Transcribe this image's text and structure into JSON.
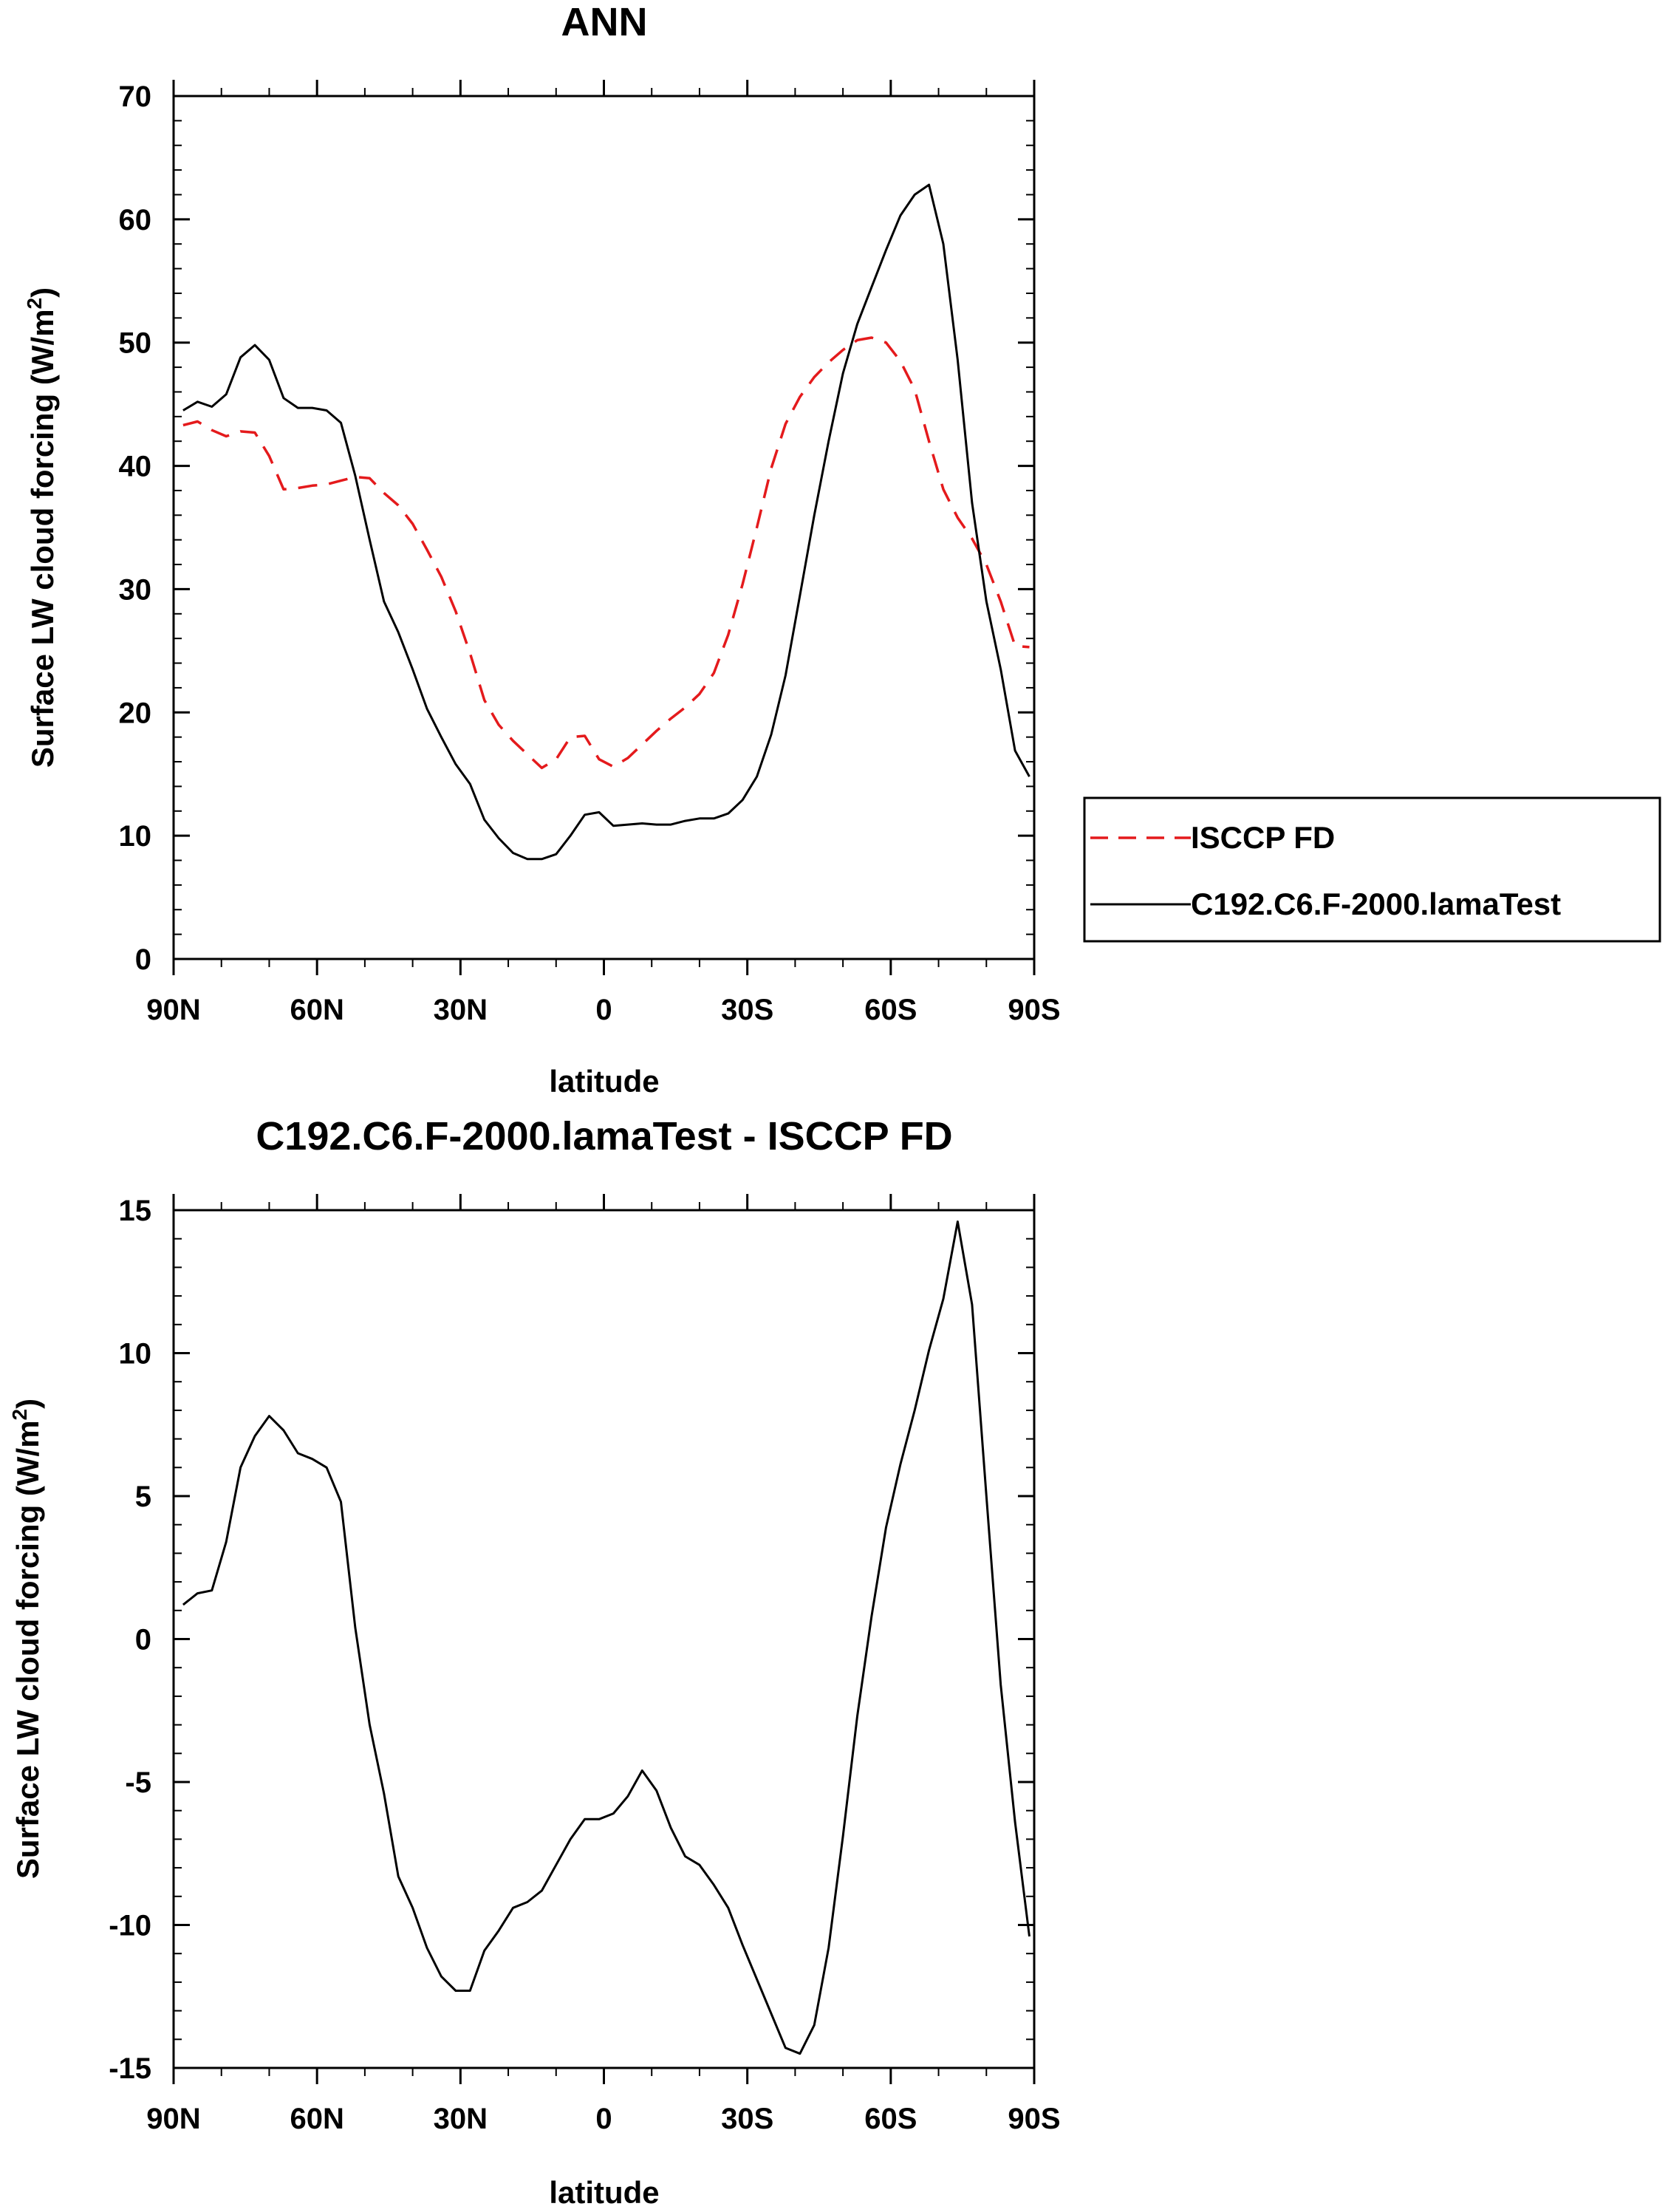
{
  "chart_data": [
    {
      "type": "line",
      "title": "ANN",
      "xlabel": "latitude",
      "ylabel": "Surface LW cloud forcing (W/m",
      "ylabel_sup": "2",
      "ylabel_close": ")",
      "xlim": [
        90,
        -90
      ],
      "ylim": [
        0,
        70
      ],
      "yticks": [
        0,
        10,
        20,
        30,
        40,
        50,
        60,
        70
      ],
      "xticks": [
        {
          "value": 90,
          "label": "90N"
        },
        {
          "value": 60,
          "label": "60N"
        },
        {
          "value": 30,
          "label": "30N"
        },
        {
          "value": 0,
          "label": "0"
        },
        {
          "value": -30,
          "label": "30S"
        },
        {
          "value": -60,
          "label": "60S"
        },
        {
          "value": -90,
          "label": "90S"
        }
      ],
      "legend_position": "right",
      "series": [
        {
          "name": "ISCCP FD",
          "color": "#e41a1c",
          "dash": "dashed",
          "x": [
            88,
            85,
            82,
            79,
            76,
            73,
            70,
            67,
            64,
            61,
            58,
            55,
            52,
            49,
            46,
            43,
            40,
            37,
            34,
            31,
            28,
            25,
            22,
            19,
            16,
            13,
            10,
            7,
            4,
            1,
            -2,
            -5,
            -8,
            -11,
            -14,
            -17,
            -20,
            -23,
            -26,
            -29,
            -32,
            -35,
            -38,
            -41,
            -44,
            -47,
            -50,
            -53,
            -56,
            -59,
            -62,
            -65,
            -68,
            -71,
            -74,
            -77,
            -80,
            -83,
            -86,
            -89
          ],
          "y": [
            43.3,
            43.6,
            42.9,
            42.4,
            42.8,
            42.7,
            40.8,
            38.1,
            38.2,
            38.4,
            38.5,
            38.8,
            39.1,
            39.0,
            37.8,
            36.8,
            35.3,
            33.2,
            31.0,
            28.2,
            24.8,
            21.0,
            19.0,
            17.7,
            16.6,
            15.5,
            16.2,
            18.0,
            18.1,
            16.2,
            15.6,
            16.3,
            17.4,
            18.5,
            19.5,
            20.4,
            21.5,
            23.2,
            26.3,
            30.4,
            35.0,
            39.8,
            43.4,
            45.6,
            47.2,
            48.4,
            49.4,
            50.2,
            50.4,
            50.0,
            48.5,
            46.2,
            42.0,
            38.1,
            35.8,
            34.1,
            32.0,
            29.0,
            25.4,
            25.3
          ]
        },
        {
          "name": "C192.C6.F-2000.lamaTest",
          "color": "#000000",
          "dash": "solid",
          "x": [
            88,
            85,
            82,
            79,
            76,
            73,
            70,
            67,
            64,
            61,
            58,
            55,
            52,
            49,
            46,
            43,
            40,
            37,
            34,
            31,
            28,
            25,
            22,
            19,
            16,
            13,
            10,
            7,
            4,
            1,
            -2,
            -5,
            -8,
            -11,
            -14,
            -17,
            -20,
            -23,
            -26,
            -29,
            -32,
            -35,
            -38,
            -41,
            -44,
            -47,
            -50,
            -53,
            -56,
            -59,
            -62,
            -65,
            -68,
            -71,
            -74,
            -77,
            -80,
            -83,
            -86,
            -89
          ],
          "y": [
            44.5,
            45.2,
            44.8,
            45.8,
            48.8,
            49.8,
            48.6,
            45.5,
            44.7,
            44.7,
            44.5,
            43.5,
            39.2,
            34.0,
            29.0,
            26.5,
            23.5,
            20.3,
            18.0,
            15.8,
            14.2,
            11.3,
            9.8,
            8.6,
            8.1,
            8.1,
            8.5,
            10.0,
            11.7,
            11.9,
            10.8,
            10.9,
            11.0,
            10.9,
            10.9,
            11.2,
            11.4,
            11.4,
            11.8,
            12.9,
            14.8,
            18.2,
            23.0,
            29.5,
            36.0,
            42.0,
            47.5,
            51.5,
            54.5,
            57.5,
            60.3,
            62.0,
            62.8,
            58.0,
            48.6,
            37.0,
            29.0,
            23.5,
            16.9,
            14.8
          ]
        }
      ]
    },
    {
      "type": "line",
      "title": "C192.C6.F-2000.lamaTest - ISCCP FD",
      "xlabel": "latitude",
      "ylabel": "Surface LW cloud forcing (W/m",
      "ylabel_sup": "2",
      "ylabel_close": ")",
      "xlim": [
        90,
        -90
      ],
      "ylim": [
        -15,
        15
      ],
      "yticks": [
        -15,
        -10,
        -5,
        0,
        5,
        10,
        15
      ],
      "xticks": [
        {
          "value": 90,
          "label": "90N"
        },
        {
          "value": 60,
          "label": "60N"
        },
        {
          "value": 30,
          "label": "30N"
        },
        {
          "value": 0,
          "label": "0"
        },
        {
          "value": -30,
          "label": "30S"
        },
        {
          "value": -60,
          "label": "60S"
        },
        {
          "value": -90,
          "label": "90S"
        }
      ],
      "series": [
        {
          "name": "C192.C6.F-2000.lamaTest - ISCCP FD",
          "color": "#000000",
          "dash": "solid",
          "x": [
            88,
            85,
            82,
            79,
            76,
            73,
            70,
            67,
            64,
            61,
            58,
            55,
            52,
            49,
            46,
            43,
            40,
            37,
            34,
            31,
            28,
            25,
            22,
            19,
            16,
            13,
            10,
            7,
            4,
            1,
            -2,
            -5,
            -8,
            -11,
            -14,
            -17,
            -20,
            -23,
            -26,
            -29,
            -32,
            -35,
            -38,
            -41,
            -44,
            -47,
            -50,
            -53,
            -56,
            -59,
            -62,
            -65,
            -68,
            -71,
            -74,
            -77,
            -80,
            -83,
            -86,
            -89
          ],
          "y": [
            1.2,
            1.6,
            1.7,
            3.4,
            6.0,
            7.1,
            7.8,
            7.3,
            6.5,
            6.3,
            6.0,
            4.8,
            0.4,
            -3.0,
            -5.4,
            -8.3,
            -9.4,
            -10.8,
            -11.8,
            -12.3,
            -12.3,
            -10.9,
            -10.2,
            -9.4,
            -9.2,
            -8.8,
            -7.9,
            -7.0,
            -6.3,
            -6.3,
            -6.1,
            -5.5,
            -4.6,
            -5.3,
            -6.6,
            -7.6,
            -7.9,
            -8.6,
            -9.4,
            -10.7,
            -11.9,
            -13.1,
            -14.3,
            -14.5,
            -13.5,
            -10.8,
            -6.9,
            -2.7,
            0.8,
            3.9,
            6.1,
            8.0,
            10.1,
            11.9,
            14.6,
            11.7,
            5.0,
            -1.6,
            -6.4,
            -10.4
          ]
        }
      ]
    }
  ]
}
